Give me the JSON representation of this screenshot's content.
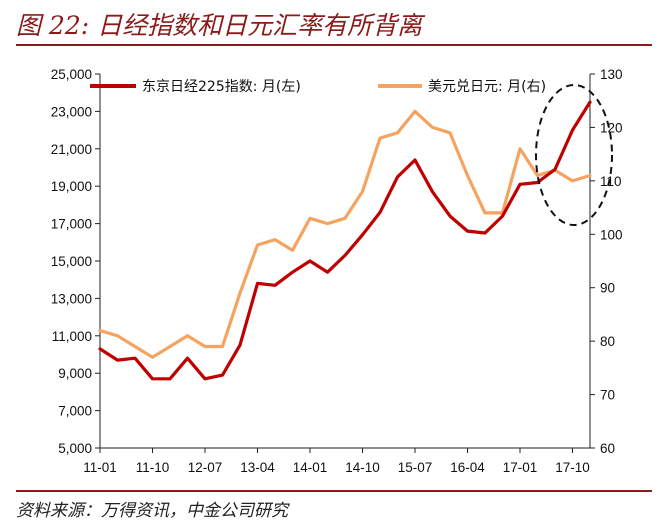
{
  "figure": {
    "title": "图 22: 日经指数和日元汇率有所背离",
    "source": "资料来源：万得资讯，中金公司研究"
  },
  "chart_data": {
    "type": "line",
    "title": "日经指数和日元汇率有所背离",
    "x": [
      "11-01",
      "11-04",
      "11-07",
      "11-10",
      "12-01",
      "12-04",
      "12-07",
      "12-10",
      "13-01",
      "13-04",
      "13-07",
      "13-10",
      "14-01",
      "14-04",
      "14-07",
      "14-10",
      "15-01",
      "15-04",
      "15-07",
      "15-10",
      "16-01",
      "16-04",
      "16-07",
      "16-10",
      "17-01",
      "17-04",
      "17-07",
      "17-10",
      "17-12"
    ],
    "x_tick_labels": [
      "11-01",
      "11-10",
      "12-07",
      "13-04",
      "14-01",
      "14-10",
      "15-07",
      "16-04",
      "17-01",
      "17-10"
    ],
    "series": [
      {
        "name": "东京日经225指数: 月(左)",
        "axis": "left",
        "color": "#c00000",
        "values": [
          10300,
          9700,
          9800,
          8700,
          8700,
          9800,
          8700,
          8900,
          10500,
          13800,
          13700,
          14400,
          15000,
          14400,
          15300,
          16400,
          17600,
          19500,
          20400,
          18700,
          17400,
          16600,
          16500,
          17400,
          19100,
          19200,
          19900,
          22000,
          23500
        ]
      },
      {
        "name": "美元兑日元: 月(右)",
        "axis": "right",
        "color": "#f4a460",
        "values": [
          82,
          81,
          79,
          77,
          79,
          81,
          79,
          79,
          89,
          98,
          99,
          97,
          103,
          102,
          103,
          108,
          118,
          119,
          123,
          120,
          119,
          111,
          104,
          104,
          116,
          111,
          112,
          110,
          111
        ]
      }
    ],
    "left_axis": {
      "ticks": [
        "5,000",
        "7,000",
        "9,000",
        "11,000",
        "13,000",
        "15,000",
        "17,000",
        "19,000",
        "21,000",
        "23,000",
        "25,000"
      ],
      "ylim": [
        5000,
        25000
      ]
    },
    "right_axis": {
      "ticks": [
        "60",
        "70",
        "80",
        "90",
        "100",
        "110",
        "120",
        "130"
      ],
      "ylim": [
        60,
        130
      ]
    },
    "legend_placement": "top",
    "annotation": "dashed ellipse around the 17-07 to 17-12 divergence"
  }
}
